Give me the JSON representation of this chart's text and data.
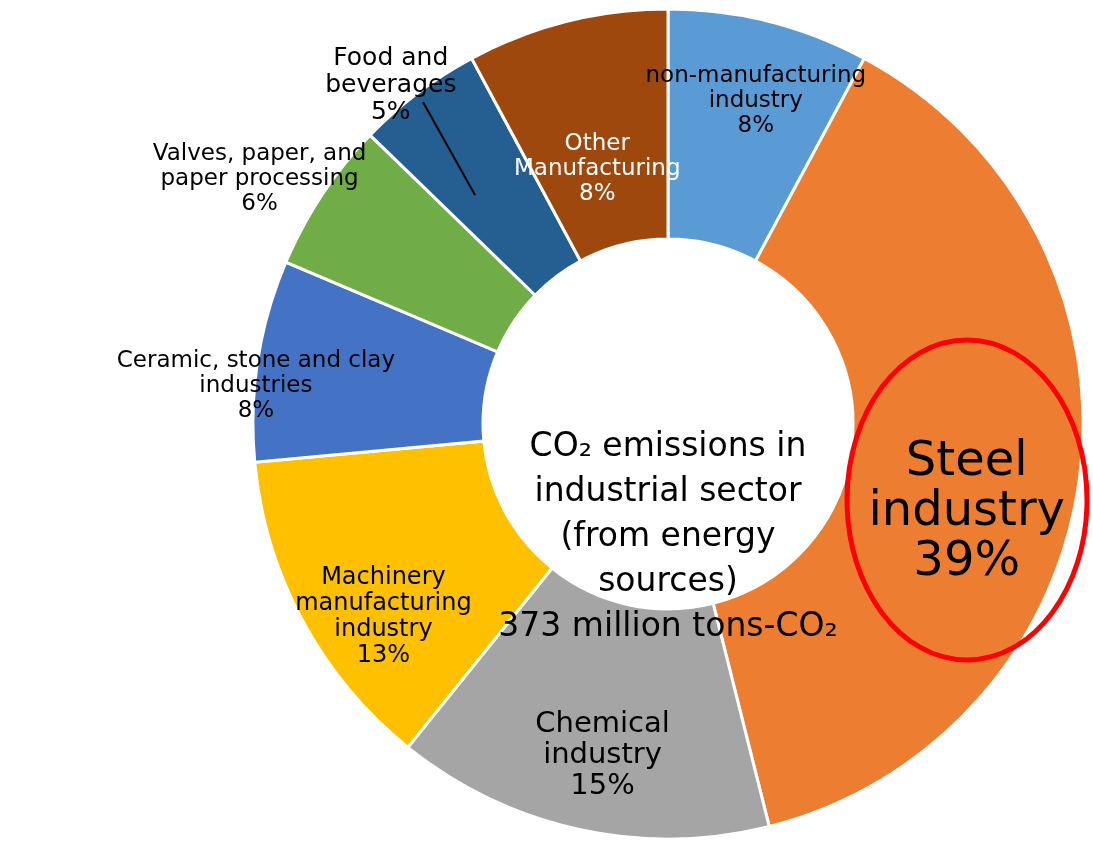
{
  "chart_data": {
    "type": "donut",
    "title": "CO₂ emissions in industrial sector (from energy sources)",
    "subtitle": "373 million tons-CO₂",
    "categories": [
      "non-manufacturing industry",
      "Steel industry",
      "Chemical industry",
      "Machinery manufacturing industry",
      "Ceramic, stone and clay industries",
      "Valves, paper, and paper processing",
      "Food and beverages",
      "Other Manufacturing"
    ],
    "values": [
      8,
      39,
      15,
      13,
      8,
      6,
      5,
      8
    ],
    "value_labels": [
      "8%",
      "39%",
      "15%",
      "13%",
      "8%",
      "6%",
      "5%",
      "8%"
    ],
    "colors": [
      "#5b9bd5",
      "#ed7d31",
      "#a5a5a5",
      "#ffc000",
      "#4472c4",
      "#70ad47",
      "#255e91",
      "#9e480e"
    ]
  }
}
